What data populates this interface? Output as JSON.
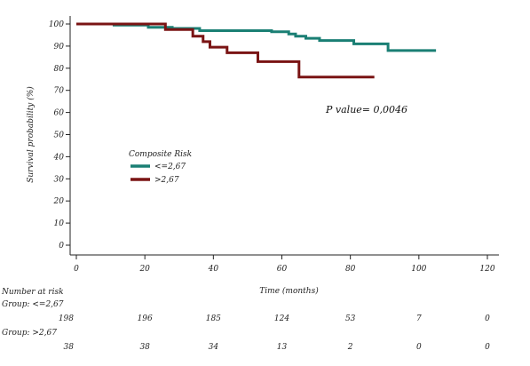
{
  "chart_data": {
    "type": "line",
    "subtype": "kaplan-meier step curves",
    "xlabel": "Time (months)",
    "ylabel": "Survival probability (%)",
    "xlim": [
      0,
      120
    ],
    "ylim": [
      0,
      100
    ],
    "x_ticks": [
      "0",
      "20",
      "40",
      "60",
      "80",
      "100",
      "120"
    ],
    "y_ticks": [
      "0",
      "10",
      "20",
      "30",
      "40",
      "50",
      "60",
      "70",
      "80",
      "90",
      "100"
    ],
    "grid": false,
    "legend": {
      "title": "Composite Risk",
      "placement": "middle-left"
    },
    "annotation": "P value= 0,0046",
    "series": [
      {
        "name": "<=2,67",
        "color": "#1a7f74",
        "points": [
          [
            0,
            100
          ],
          [
            10,
            100
          ],
          [
            11,
            99.5
          ],
          [
            20,
            99.5
          ],
          [
            21,
            98.5
          ],
          [
            27,
            98.5
          ],
          [
            28,
            98
          ],
          [
            35,
            98
          ],
          [
            36,
            97
          ],
          [
            55,
            97
          ],
          [
            57,
            96.5
          ],
          [
            61,
            96.5
          ],
          [
            62,
            95.5
          ],
          [
            63,
            95.5
          ],
          [
            64,
            94.5
          ],
          [
            66,
            94.5
          ],
          [
            67,
            93.5
          ],
          [
            70,
            93.5
          ],
          [
            71,
            92.5
          ],
          [
            80,
            92.5
          ],
          [
            81,
            91
          ],
          [
            90,
            91
          ],
          [
            91,
            88
          ],
          [
            105,
            88
          ]
        ]
      },
      {
        "name": ">2,67",
        "color": "#7a1414",
        "points": [
          [
            0,
            100
          ],
          [
            25,
            100
          ],
          [
            26,
            97.5
          ],
          [
            33,
            97.5
          ],
          [
            34,
            94.5
          ],
          [
            36,
            94.5
          ],
          [
            37,
            92
          ],
          [
            38,
            92
          ],
          [
            39,
            89.5
          ],
          [
            43,
            89.5
          ],
          [
            44,
            87
          ],
          [
            52,
            87
          ],
          [
            53,
            83
          ],
          [
            64,
            83
          ],
          [
            65,
            76
          ],
          [
            87,
            76
          ]
        ]
      }
    ],
    "risk_table": {
      "title": "Number at risk",
      "groups": [
        {
          "label": "Group: <=2,67",
          "counts": [
            "198",
            "196",
            "185",
            "124",
            "53",
            "7",
            "0"
          ]
        },
        {
          "label": "Group: >2,67",
          "counts": [
            "38",
            "38",
            "34",
            "13",
            "2",
            "0",
            "0"
          ]
        }
      ]
    }
  }
}
